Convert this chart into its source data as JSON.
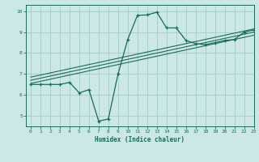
{
  "xlabel": "Humidex (Indice chaleur)",
  "xlim": [
    -0.5,
    23
  ],
  "ylim": [
    4.5,
    10.3
  ],
  "bg_color": "#cce8e6",
  "grid_color": "#aacfcc",
  "line_color": "#1a6b5a",
  "xticks": [
    0,
    1,
    2,
    3,
    4,
    5,
    6,
    7,
    8,
    9,
    10,
    11,
    12,
    13,
    14,
    15,
    16,
    17,
    18,
    19,
    20,
    21,
    22,
    23
  ],
  "yticks": [
    5,
    6,
    7,
    8,
    9,
    10
  ],
  "line1_x": [
    0,
    1,
    2,
    3,
    4,
    5,
    6,
    7,
    8,
    9,
    10,
    11,
    12,
    13,
    14,
    15,
    16,
    17,
    18,
    19,
    20,
    21,
    22,
    23
  ],
  "line1_y": [
    6.5,
    6.5,
    6.5,
    6.5,
    6.6,
    6.1,
    6.25,
    4.75,
    4.85,
    7.0,
    8.65,
    9.8,
    9.82,
    9.95,
    9.2,
    9.2,
    8.6,
    8.45,
    8.4,
    8.5,
    8.6,
    8.65,
    9.0,
    9.1
  ],
  "line2_x": [
    0,
    23
  ],
  "line2_y": [
    6.55,
    8.85
  ],
  "line3_x": [
    0,
    23
  ],
  "line3_y": [
    6.7,
    9.0
  ],
  "line4_x": [
    0,
    23
  ],
  "line4_y": [
    6.85,
    9.15
  ]
}
